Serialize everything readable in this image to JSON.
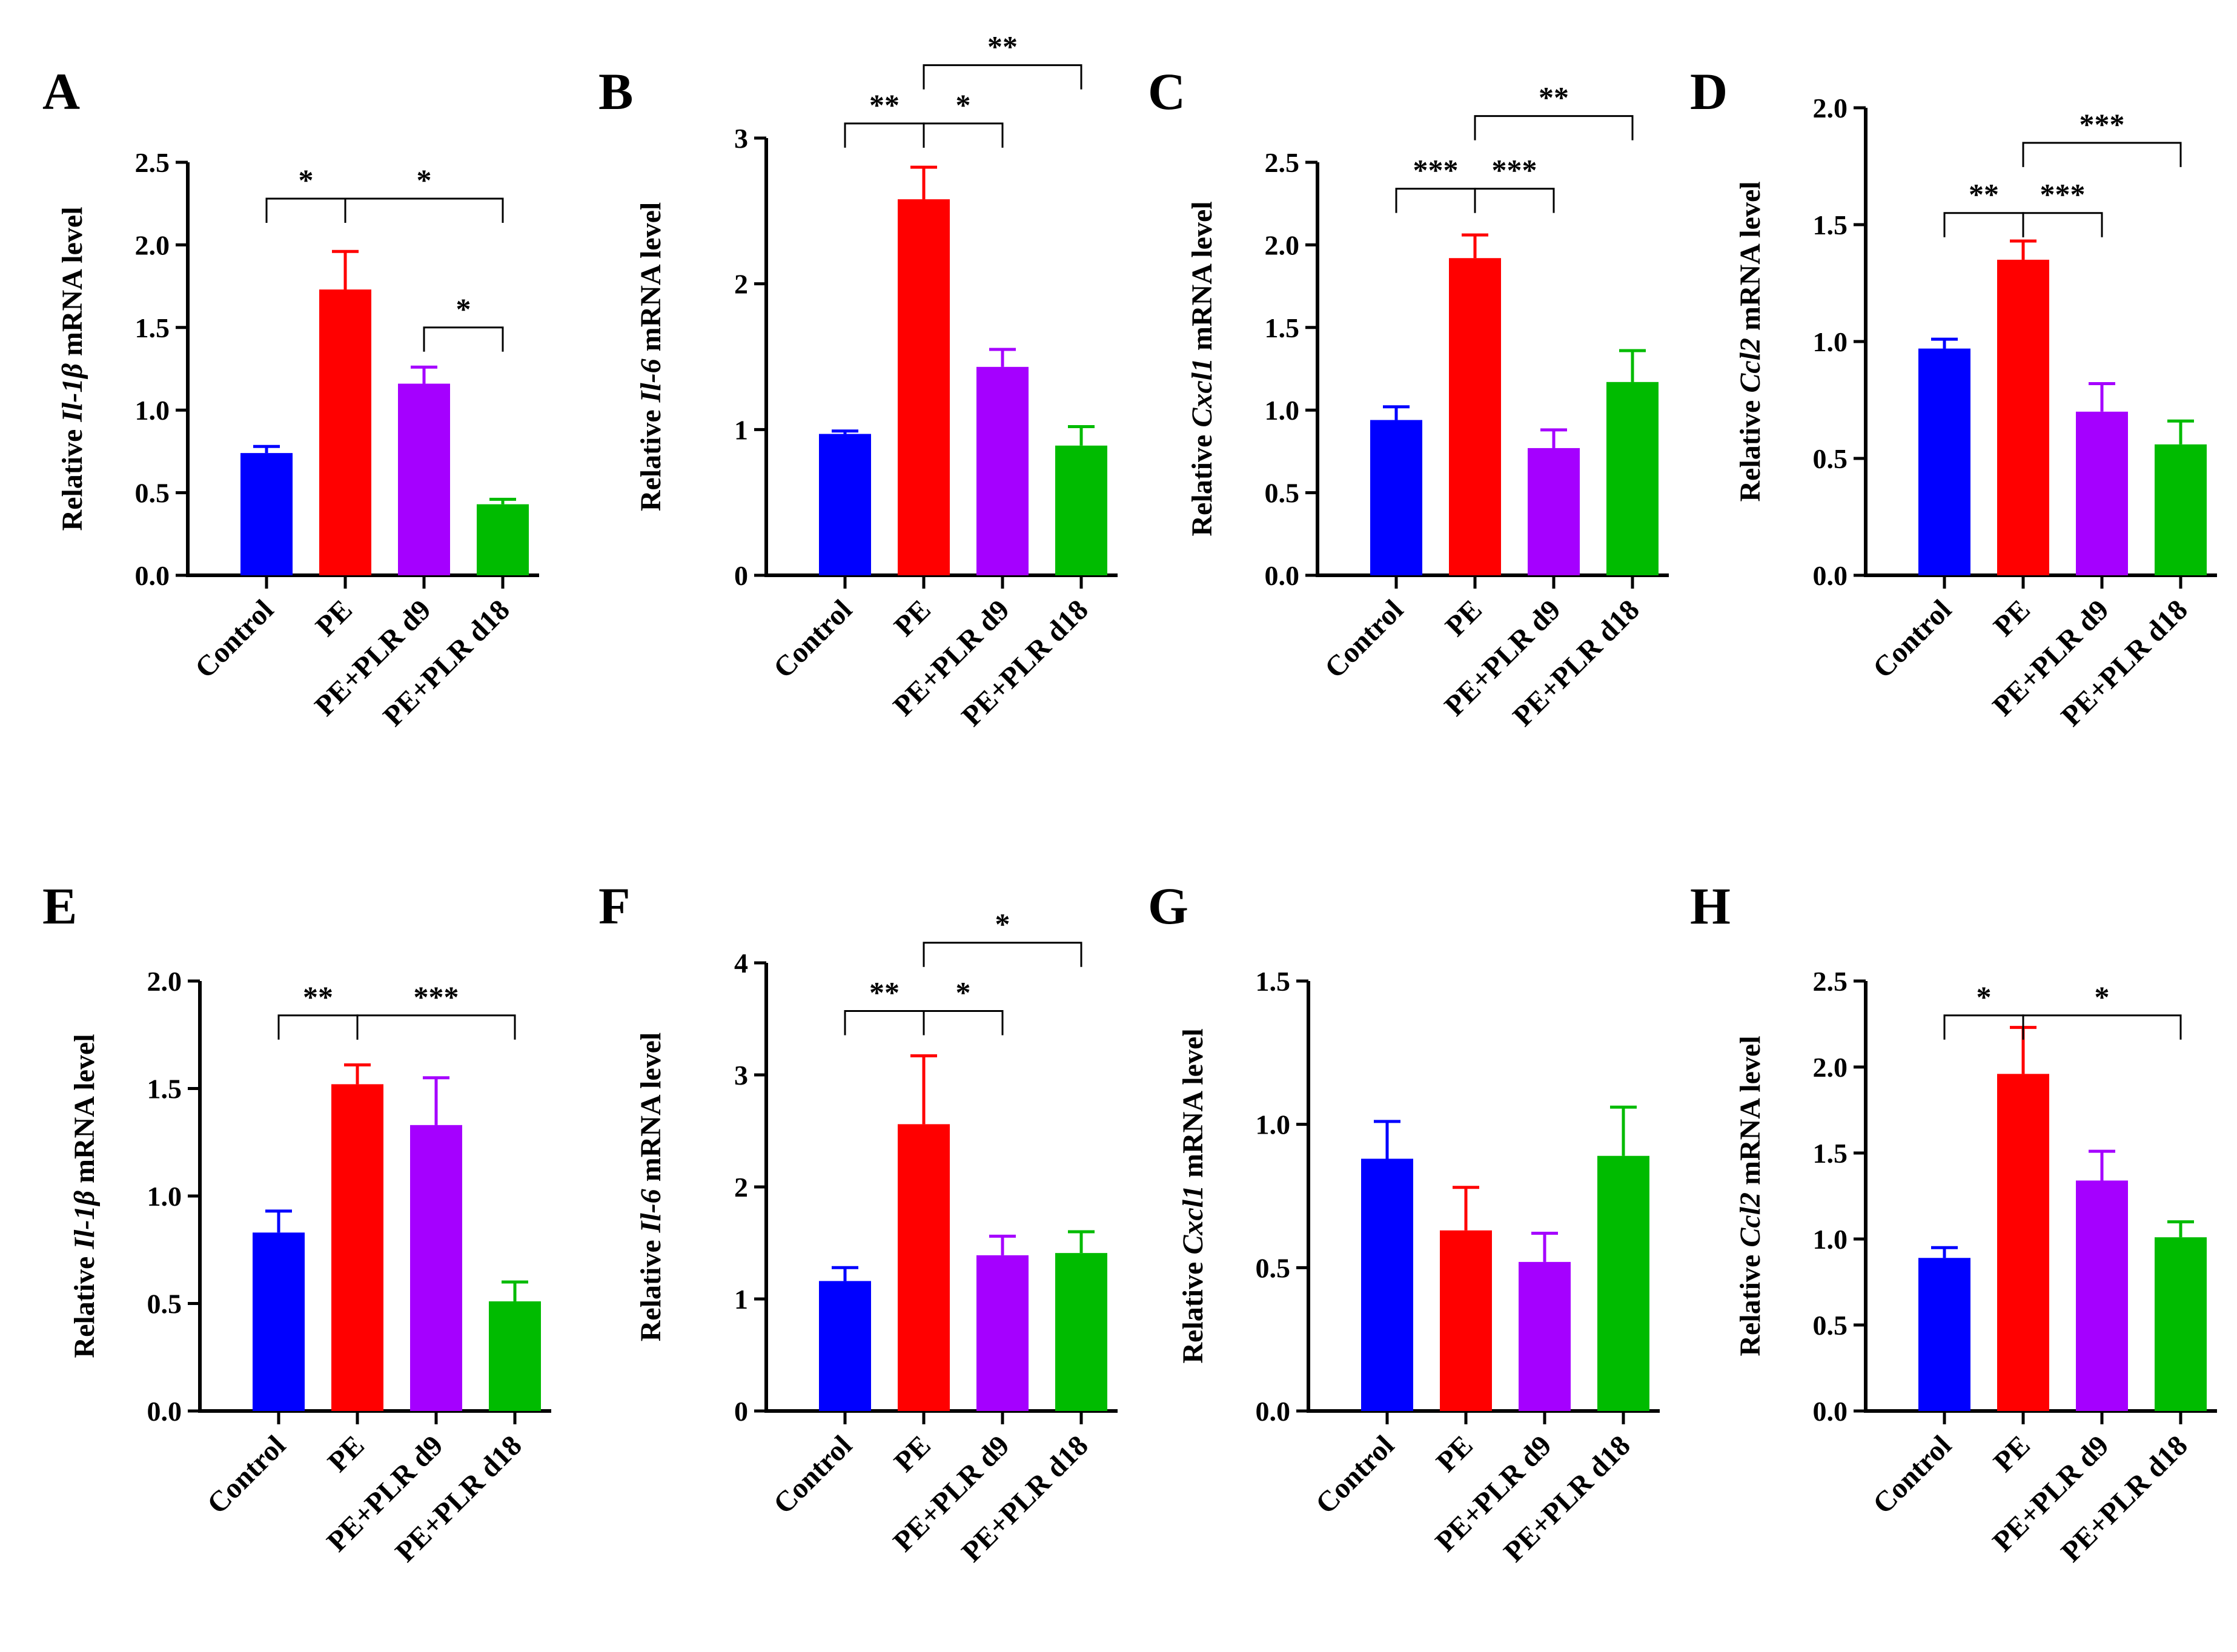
{
  "chart_data": [
    {
      "panel": "A",
      "type": "bar",
      "categories": [
        "Control",
        "PE",
        "PE+PLR d9",
        "PE+PLR d18"
      ],
      "values": [
        0.74,
        1.73,
        1.16,
        0.43
      ],
      "errors": [
        0.04,
        0.23,
        0.1,
        0.03
      ],
      "colors": [
        "#0000ff",
        "#ff0000",
        "#a500ff",
        "#00bb00"
      ],
      "ylabel": {
        "prefix": "Relative ",
        "gene": "Il-1β",
        "suffix": " mRNA level"
      },
      "ylim": [
        0,
        2.5
      ],
      "yticks": [
        0,
        0.5,
        1.0,
        1.5,
        2.0,
        2.5
      ],
      "ytick_labels": [
        "0.0",
        "0.5",
        "1.0",
        "1.5",
        "2.0",
        "2.5"
      ],
      "significance": [
        {
          "from": 0,
          "to": 1,
          "label": "*",
          "level": 2.28
        },
        {
          "from": 1,
          "to": 3,
          "label": "*",
          "level": 2.28
        },
        {
          "from": 2,
          "to": 3,
          "label": "*",
          "level": 1.5
        }
      ]
    },
    {
      "panel": "B",
      "type": "bar",
      "categories": [
        "Control",
        "PE",
        "PE+PLR d9",
        "PE+PLR d18"
      ],
      "values": [
        0.97,
        2.58,
        1.43,
        0.89
      ],
      "errors": [
        0.02,
        0.22,
        0.12,
        0.13
      ],
      "colors": [
        "#0000ff",
        "#ff0000",
        "#a500ff",
        "#00bb00"
      ],
      "ylabel": {
        "prefix": "Relative ",
        "gene": "Il-6",
        "suffix": " mRNA level"
      },
      "ylim": [
        0,
        3
      ],
      "yticks": [
        0,
        1,
        2,
        3
      ],
      "ytick_labels": [
        "0",
        "1",
        "2",
        "3"
      ],
      "significance": [
        {
          "from": 0,
          "to": 1,
          "label": "**",
          "level": 3.1
        },
        {
          "from": 1,
          "to": 2,
          "label": "*",
          "level": 3.1
        },
        {
          "from": 1,
          "to": 3,
          "label": "**",
          "level": 3.5
        }
      ]
    },
    {
      "panel": "C",
      "type": "bar",
      "categories": [
        "Control",
        "PE",
        "PE+PLR d9",
        "PE+PLR d18"
      ],
      "values": [
        0.94,
        1.92,
        0.77,
        1.17
      ],
      "errors": [
        0.08,
        0.14,
        0.11,
        0.19
      ],
      "colors": [
        "#0000ff",
        "#ff0000",
        "#a500ff",
        "#00bb00"
      ],
      "ylabel": {
        "prefix": "Relative ",
        "gene": "Cxcl1",
        "suffix": " mRNA level"
      },
      "ylim": [
        0,
        2.5
      ],
      "yticks": [
        0,
        0.5,
        1.0,
        1.5,
        2.0,
        2.5
      ],
      "ytick_labels": [
        "0.0",
        "0.5",
        "1.0",
        "1.5",
        "2.0",
        "2.5"
      ],
      "significance": [
        {
          "from": 0,
          "to": 1,
          "label": "***",
          "level": 2.34
        },
        {
          "from": 1,
          "to": 2,
          "label": "***",
          "level": 2.34
        },
        {
          "from": 1,
          "to": 3,
          "label": "**",
          "level": 2.78
        }
      ]
    },
    {
      "panel": "D",
      "type": "bar",
      "categories": [
        "Control",
        "PE",
        "PE+PLR d9",
        "PE+PLR d18"
      ],
      "values": [
        0.97,
        1.35,
        0.7,
        0.56
      ],
      "errors": [
        0.04,
        0.08,
        0.12,
        0.1
      ],
      "colors": [
        "#0000ff",
        "#ff0000",
        "#a500ff",
        "#00bb00"
      ],
      "ylabel": {
        "prefix": "Relative ",
        "gene": "Ccl2",
        "suffix": " mRNA level"
      },
      "ylim": [
        0,
        2.0
      ],
      "yticks": [
        0,
        0.5,
        1.0,
        1.5,
        2.0
      ],
      "ytick_labels": [
        "0.0",
        "0.5",
        "1.0",
        "1.5",
        "2.0"
      ],
      "significance": [
        {
          "from": 0,
          "to": 1,
          "label": "**",
          "level": 1.55
        },
        {
          "from": 1,
          "to": 2,
          "label": "***",
          "level": 1.55
        },
        {
          "from": 1,
          "to": 3,
          "label": "***",
          "level": 1.85
        }
      ]
    },
    {
      "panel": "E",
      "type": "bar",
      "categories": [
        "Control",
        "PE",
        "PE+PLR d9",
        "PE+PLR d18"
      ],
      "values": [
        0.83,
        1.52,
        1.33,
        0.51
      ],
      "errors": [
        0.1,
        0.09,
        0.22,
        0.09
      ],
      "colors": [
        "#0000ff",
        "#ff0000",
        "#a500ff",
        "#00bb00"
      ],
      "ylabel": {
        "prefix": "Relative ",
        "gene": "Il-1β",
        "suffix": " mRNA level"
      },
      "ylim": [
        0,
        2.0
      ],
      "yticks": [
        0,
        0.5,
        1.0,
        1.5,
        2.0
      ],
      "ytick_labels": [
        "0.0",
        "0.5",
        "1.0",
        "1.5",
        "2.0"
      ],
      "significance": [
        {
          "from": 0,
          "to": 1,
          "label": "**",
          "level": 1.84
        },
        {
          "from": 1,
          "to": 3,
          "label": "***",
          "level": 1.84
        }
      ]
    },
    {
      "panel": "F",
      "type": "bar",
      "categories": [
        "Control",
        "PE",
        "PE+PLR d9",
        "PE+PLR d18"
      ],
      "values": [
        1.16,
        2.56,
        1.39,
        1.41
      ],
      "errors": [
        0.12,
        0.61,
        0.17,
        0.19
      ],
      "colors": [
        "#0000ff",
        "#ff0000",
        "#a500ff",
        "#00bb00"
      ],
      "ylabel": {
        "prefix": "Relative ",
        "gene": "Il-6",
        "suffix": " mRNA level"
      },
      "ylim": [
        0,
        4
      ],
      "yticks": [
        0,
        1,
        2,
        3,
        4
      ],
      "ytick_labels": [
        "0",
        "1",
        "2",
        "3",
        "4"
      ],
      "significance": [
        {
          "from": 0,
          "to": 1,
          "label": "**",
          "level": 3.57
        },
        {
          "from": 1,
          "to": 2,
          "label": "*",
          "level": 3.57
        },
        {
          "from": 1,
          "to": 3,
          "label": "*",
          "level": 4.18
        }
      ]
    },
    {
      "panel": "G",
      "type": "bar",
      "categories": [
        "Control",
        "PE",
        "PE+PLR d9",
        "PE+PLR d18"
      ],
      "values": [
        0.88,
        0.63,
        0.52,
        0.89
      ],
      "errors": [
        0.13,
        0.15,
        0.1,
        0.17
      ],
      "colors": [
        "#0000ff",
        "#ff0000",
        "#a500ff",
        "#00bb00"
      ],
      "ylabel": {
        "prefix": "Relative ",
        "gene": "Cxcl1",
        "suffix": " mRNA level"
      },
      "ylim": [
        0,
        1.5
      ],
      "yticks": [
        0,
        0.5,
        1.0,
        1.5
      ],
      "ytick_labels": [
        "0.0",
        "0.5",
        "1.0",
        "1.5"
      ],
      "significance": []
    },
    {
      "panel": "H",
      "type": "bar",
      "categories": [
        "Control",
        "PE",
        "PE+PLR d9",
        "PE+PLR d18"
      ],
      "values": [
        0.89,
        1.96,
        1.34,
        1.01
      ],
      "errors": [
        0.06,
        0.27,
        0.17,
        0.09
      ],
      "colors": [
        "#0000ff",
        "#ff0000",
        "#a500ff",
        "#00bb00"
      ],
      "ylabel": {
        "prefix": "Relative ",
        "gene": "Ccl2",
        "suffix": " mRNA level"
      },
      "ylim": [
        0,
        2.5
      ],
      "yticks": [
        0,
        0.5,
        1.0,
        1.5,
        2.0,
        2.5
      ],
      "ytick_labels": [
        "0.0",
        "0.5",
        "1.0",
        "1.5",
        "2.0",
        "2.5"
      ],
      "significance": [
        {
          "from": 0,
          "to": 1,
          "label": "*",
          "level": 2.3
        },
        {
          "from": 1,
          "to": 3,
          "label": "*",
          "level": 2.3
        }
      ]
    }
  ]
}
